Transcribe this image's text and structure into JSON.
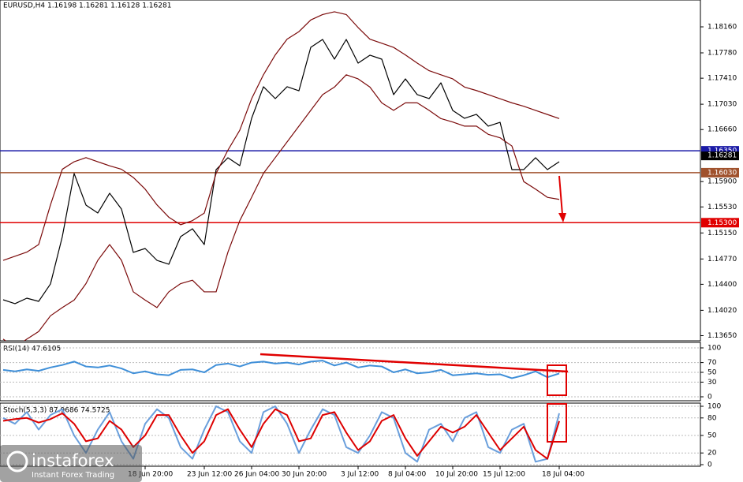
{
  "chart_data": [
    {
      "type": "line",
      "title": "EURUSD,H4  1.16198 1.16281 1.16128 1.16281",
      "categories": [
        null,
        null,
        null,
        null,
        null,
        null,
        null,
        null,
        null,
        null,
        null,
        null,
        "18 Jun 20:00",
        null,
        null,
        null,
        null,
        "23 Jun 12:00",
        null,
        null,
        null,
        "26 Jun 04:00",
        null,
        null,
        null,
        "30 Jun 20:00",
        null,
        null,
        null,
        null,
        "3 Jul 12:00",
        null,
        null,
        null,
        "8 Jul 04:00",
        null,
        null,
        null,
        "10 Jul 20:00",
        null,
        null,
        null,
        "15 Jul 12:00",
        null,
        null,
        null,
        null,
        "18 Jul 04:00"
      ],
      "series": [
        {
          "color": "#000000",
          "values": [
            1.14174,
            1.14117,
            1.14197,
            1.14151,
            1.14405,
            1.15096,
            1.16018,
            1.15557,
            1.15442,
            1.1573,
            1.15499,
            1.14866,
            1.14923,
            1.1475,
            1.14693,
            1.15096,
            1.15211,
            1.14981,
            1.16075,
            1.16248,
            1.16133,
            1.16824,
            1.17285,
            1.17112,
            1.17285,
            1.17227,
            1.17861,
            1.17976,
            1.17688,
            1.17976,
            1.1763,
            1.17746,
            1.17688,
            1.1717,
            1.174,
            1.1717,
            1.17112,
            1.17342,
            1.16939,
            1.16824,
            1.16882,
            1.16709,
            1.16766,
            1.16075,
            1.16075,
            1.16248,
            1.16075,
            1.1619
          ]
        },
        {
          "color": "#7b0a0a",
          "values": [
            1.1475,
            1.1481,
            1.1487,
            1.1498,
            1.1556,
            1.1608,
            1.1619,
            1.1625,
            1.1619,
            1.1613,
            1.1608,
            1.1596,
            1.1579,
            1.1556,
            1.1538,
            1.1527,
            1.1533,
            1.1544,
            1.1602,
            1.1636,
            1.1665,
            1.1711,
            1.1746,
            1.1775,
            1.1798,
            1.1809,
            1.1826,
            1.1834,
            1.1838,
            1.1834,
            1.1815,
            1.1798,
            1.1792,
            1.1786,
            1.1775,
            1.1763,
            1.1752,
            1.1746,
            1.174,
            1.1728,
            1.1723,
            1.1717,
            1.1711,
            1.1705,
            1.17,
            1.1694,
            1.1688,
            1.1682
          ]
        },
        {
          "color": "#7b0a0a",
          "values": [
            1.136,
            1.1348,
            1.136,
            1.1371,
            1.1394,
            1.1406,
            1.1417,
            1.1441,
            1.1475,
            1.1498,
            1.1475,
            1.1429,
            1.1417,
            1.1406,
            1.1429,
            1.1441,
            1.1446,
            1.1429,
            1.1429,
            1.1487,
            1.1533,
            1.1567,
            1.1602,
            1.1625,
            1.1648,
            1.1671,
            1.1694,
            1.1717,
            1.1728,
            1.1746,
            1.174,
            1.1728,
            1.1705,
            1.1694,
            1.1705,
            1.1705,
            1.1694,
            1.1682,
            1.1677,
            1.1671,
            1.1671,
            1.1659,
            1.1654,
            1.1642,
            1.159,
            1.1579,
            1.1567,
            1.1564
          ]
        }
      ],
      "ylim": [
        1.13575,
        1.18552
      ],
      "yticks": [
        {
          "value": 1.1816,
          "label": "1.18160"
        },
        {
          "value": 1.1778,
          "label": "1.17780"
        },
        {
          "value": 1.1741,
          "label": "1.17410"
        },
        {
          "value": 1.1703,
          "label": "1.17030"
        },
        {
          "value": 1.1666,
          "label": "1.16660"
        },
        {
          "value": 1.159,
          "label": "1.15900"
        },
        {
          "value": 1.1553,
          "label": "1.15530"
        },
        {
          "value": 1.1515,
          "label": "1.15150"
        },
        {
          "value": 1.1477,
          "label": "1.14770"
        },
        {
          "value": 1.144,
          "label": "1.14400"
        },
        {
          "value": 1.1402,
          "label": "1.14020"
        },
        {
          "value": 1.1365,
          "label": "1.13650"
        }
      ],
      "levels": [
        {
          "value": 1.1635,
          "label": "1.16350",
          "color": "#1a1aa6"
        },
        {
          "value": 1.1603,
          "label": "1.16030",
          "color": "#a0522d"
        },
        {
          "value": 1.153,
          "label": "1.15300",
          "color": "#e00000"
        }
      ],
      "current_price": {
        "value": 1.16281,
        "label": "1.16281"
      },
      "grid": false
    },
    {
      "type": "line",
      "title": "RSI(14) 47.6105",
      "series": [
        {
          "color": "#3f8fd8",
          "values": [
            55,
            52,
            56,
            53,
            60,
            65,
            72,
            62,
            60,
            64,
            58,
            48,
            52,
            46,
            44,
            55,
            56,
            50,
            65,
            68,
            62,
            70,
            72,
            68,
            70,
            66,
            72,
            74,
            64,
            70,
            60,
            64,
            62,
            50,
            56,
            48,
            50,
            55,
            44,
            46,
            48,
            45,
            46,
            38,
            44,
            52,
            40,
            47.6105
          ]
        }
      ],
      "ylim": [
        0,
        100
      ],
      "yticks": [
        100,
        70,
        50,
        30,
        0
      ],
      "grid": true
    },
    {
      "type": "line",
      "title": "Stoch(5,3,3) 87.9686 74.5725",
      "series": [
        {
          "color": "#6a9fdc",
          "values": [
            80,
            70,
            90,
            60,
            85,
            95,
            50,
            20,
            60,
            90,
            40,
            10,
            70,
            95,
            80,
            30,
            10,
            60,
            100,
            90,
            40,
            20,
            90,
            100,
            70,
            20,
            60,
            95,
            85,
            30,
            20,
            50,
            90,
            80,
            20,
            5,
            60,
            70,
            40,
            80,
            90,
            30,
            20,
            60,
            70,
            5,
            10,
            87.9686
          ]
        },
        {
          "color": "#dd0000",
          "values": [
            75,
            78,
            80,
            72,
            78,
            88,
            70,
            40,
            45,
            75,
            60,
            30,
            50,
            85,
            85,
            50,
            20,
            40,
            85,
            95,
            60,
            30,
            70,
            95,
            85,
            40,
            45,
            85,
            90,
            55,
            25,
            40,
            75,
            85,
            45,
            15,
            40,
            65,
            55,
            65,
            85,
            55,
            25,
            45,
            65,
            25,
            10,
            74.5725
          ]
        }
      ],
      "ylim": [
        0,
        100
      ],
      "yticks": [
        100,
        80,
        50,
        20,
        0
      ],
      "grid": true
    }
  ],
  "logo": {
    "name": "instaforex",
    "tagline": "Instant Forex Trading"
  }
}
